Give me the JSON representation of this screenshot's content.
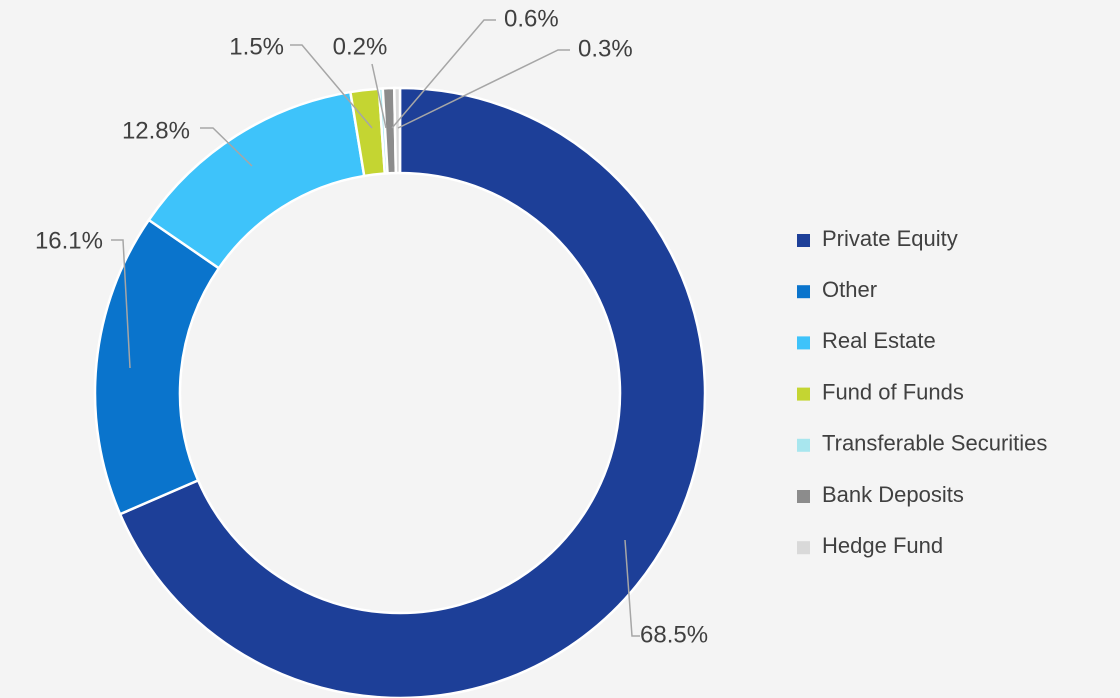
{
  "chart_data": {
    "type": "donut",
    "categories": [
      "Private Equity",
      "Other",
      "Real Estate",
      "Fund of Funds",
      "Transferable Securities",
      "Bank Deposits",
      "Hedge Fund"
    ],
    "values": [
      68.5,
      16.1,
      12.8,
      1.5,
      0.2,
      0.6,
      0.3
    ],
    "value_labels": [
      "68.5%",
      "16.1%",
      "12.8%",
      "1.5%",
      "0.2%",
      "0.6%",
      "0.3%"
    ],
    "colors": [
      "#1d3f98",
      "#0a74cc",
      "#3ec3fa",
      "#c4d532",
      "#a8e6ee",
      "#8c8c8c",
      "#d9d9d9"
    ],
    "legend": "right"
  }
}
